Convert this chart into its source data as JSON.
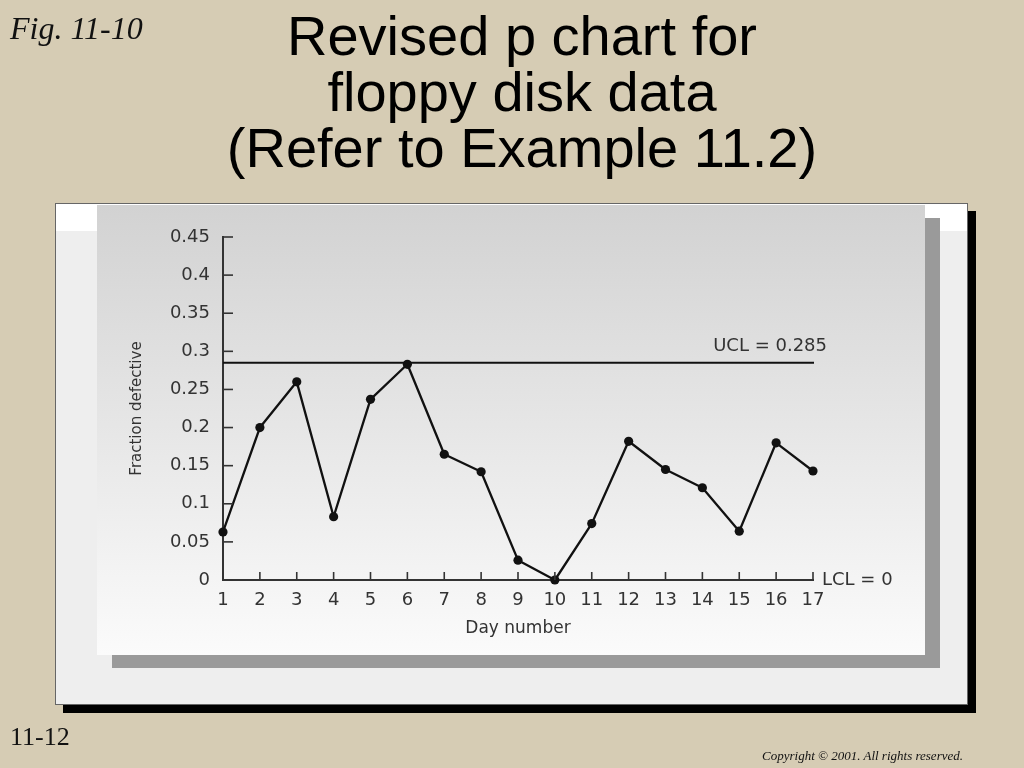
{
  "chart_data": {
    "type": "line",
    "title": "Revised p chart for floppy disk data",
    "subtitle": "(Refer to Example 11.2)",
    "xlabel": "Day number",
    "ylabel": "Fraction defective",
    "x": [
      1,
      2,
      3,
      4,
      5,
      6,
      7,
      8,
      9,
      10,
      11,
      12,
      13,
      14,
      15,
      16,
      17
    ],
    "values": [
      0.063,
      0.2,
      0.26,
      0.083,
      0.237,
      0.283,
      0.165,
      0.142,
      0.026,
      0,
      0.074,
      0.182,
      0.145,
      0.121,
      0.064,
      0.18,
      0.143
    ],
    "color": "#111111",
    "marker": "circle",
    "xlim": [
      1,
      17
    ],
    "xticks": [
      1,
      2,
      3,
      4,
      5,
      6,
      7,
      8,
      9,
      10,
      11,
      12,
      13,
      14,
      15,
      16,
      17
    ],
    "ylim": [
      0,
      0.45
    ],
    "yticks": [
      0,
      0.05,
      0.1,
      0.15,
      0.2,
      0.25,
      0.3,
      0.35,
      0.4,
      0.45
    ],
    "ref_lines": [
      {
        "axis": "y",
        "value": 0.285,
        "label": "UCL = 0.285",
        "color": "#111111"
      }
    ],
    "annotations": [
      "Fig. 11-10",
      "11-12",
      "Copyright © 2001. All rights reserved.",
      "LCL = 0"
    ]
  }
}
